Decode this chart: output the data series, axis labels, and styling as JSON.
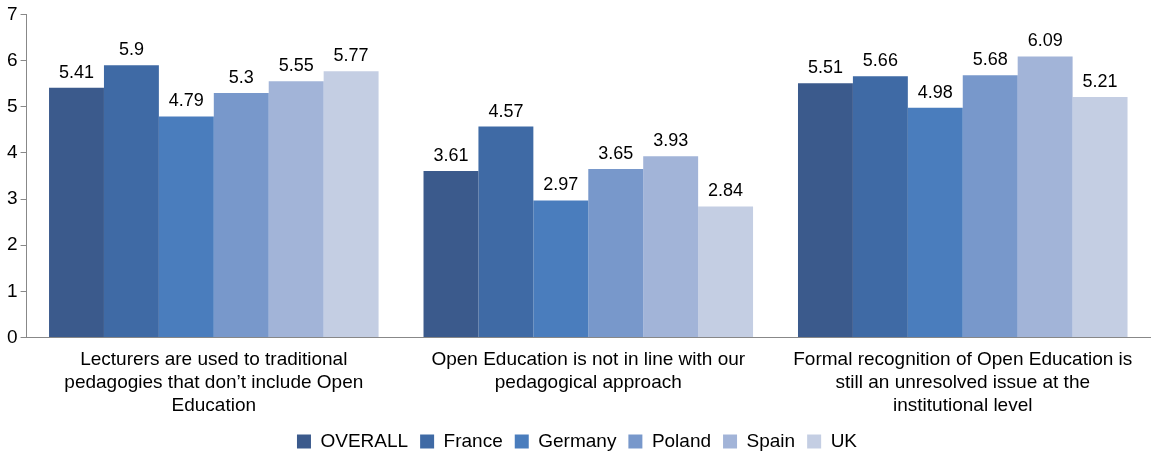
{
  "chart_data": {
    "type": "bar",
    "categories": [
      "Lecturers are used to traditional pedagogies that don’t include Open Education",
      "Open Education is not in line with our pedagogical approach",
      "Formal recognition of Open Education is still an unresolved issue at the institutional level"
    ],
    "series": [
      {
        "name": "OVERALL",
        "color": "#3b5a8c",
        "values": [
          5.41,
          3.61,
          5.51
        ]
      },
      {
        "name": "France",
        "color": "#3f6aa5",
        "values": [
          5.9,
          4.57,
          5.66
        ]
      },
      {
        "name": "Germany",
        "color": "#4a7dbd",
        "values": [
          4.79,
          2.97,
          4.98
        ]
      },
      {
        "name": "Poland",
        "color": "#7898cb",
        "values": [
          5.3,
          3.65,
          5.68
        ]
      },
      {
        "name": "Spain",
        "color": "#a2b4d8",
        "values": [
          5.55,
          3.93,
          6.09
        ]
      },
      {
        "name": "UK",
        "color": "#c4cee3",
        "values": [
          5.77,
          2.84,
          5.21
        ]
      }
    ],
    "ylim": [
      0,
      7
    ],
    "yticks": [
      0,
      1,
      2,
      3,
      4,
      5,
      6,
      7
    ],
    "grid": false,
    "legend": "bottom",
    "data_labels": true
  }
}
